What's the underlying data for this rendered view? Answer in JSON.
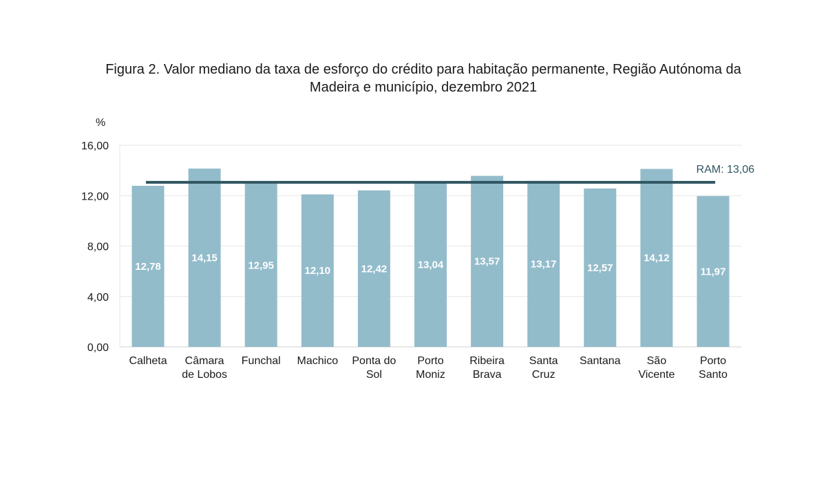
{
  "chart_data": {
    "type": "bar",
    "title_line1": "Figura 2. Valor mediano da taxa de esforço do crédito para habitação permanente, Região Autónoma da",
    "title_line2": "Madeira e município, dezembro 2021",
    "ylabel": "%",
    "ylim": [
      0,
      16
    ],
    "yticks": [
      "0,00",
      "4,00",
      "8,00",
      "12,00",
      "16,00"
    ],
    "categories": [
      [
        "Calheta"
      ],
      [
        "Câmara",
        "de Lobos"
      ],
      [
        "Funchal"
      ],
      [
        "Machico"
      ],
      [
        "Ponta do",
        "Sol"
      ],
      [
        "Porto",
        "Moniz"
      ],
      [
        "Ribeira",
        "Brava"
      ],
      [
        "Santa",
        "Cruz"
      ],
      [
        "Santana"
      ],
      [
        "São",
        "Vicente"
      ],
      [
        "Porto",
        "Santo"
      ]
    ],
    "values": [
      12.78,
      14.15,
      12.95,
      12.1,
      12.42,
      13.04,
      13.57,
      13.17,
      12.57,
      14.12,
      11.97
    ],
    "value_labels": [
      "12,78",
      "14,15",
      "12,95",
      "12,10",
      "12,42",
      "13,04",
      "13,57",
      "13,17",
      "12,57",
      "14,12",
      "11,97"
    ],
    "reference_line": {
      "label": "RAM: 13,06",
      "value": 13.06
    },
    "colors": {
      "bar": "#93bccb",
      "reference": "#2f5661",
      "grid": "#e6e6e6",
      "axis": "#d0d0d0"
    },
    "grid": true
  }
}
